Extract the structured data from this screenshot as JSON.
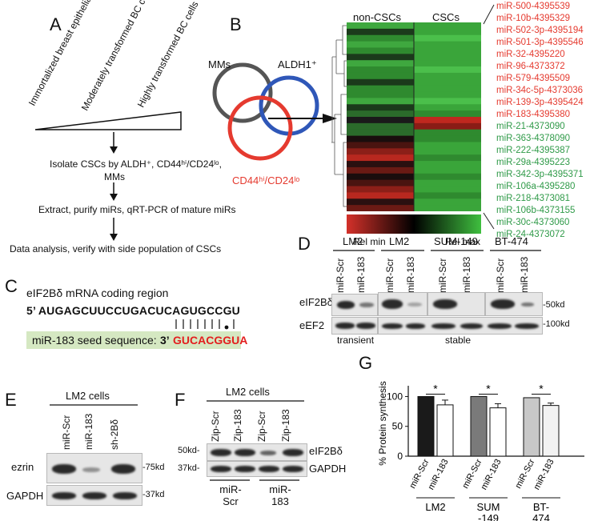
{
  "panelA": {
    "label": "A",
    "wedge_labels": [
      "Immortalized breast epithelial cells",
      "Moderately transformed BC cells",
      "Highly transformed BC cells"
    ],
    "step1": "Isolate CSCs by ALDH⁺, CD44ʰⁱ/CD24ˡᵒ,",
    "step1b": "MMs",
    "step2": "Extract, purify miRs, qRT-PCR of mature miRs",
    "step3": "Data analysis, verify with side population of CSCs"
  },
  "panelB": {
    "label": "B",
    "venn_mms": "MMs",
    "venn_aldh": "ALDH1⁺",
    "venn_cd44": "CD44ʰⁱ/CD24ˡᵒ",
    "col_non_cscs": "non-CSCs",
    "col_cscs": "CSCs",
    "scale_min": "Rel min",
    "scale_max": "Rel max",
    "colors": {
      "red": "#e53a2f",
      "blue": "#2f57b8",
      "green": "#2f9a48"
    },
    "mirs_red": [
      "miR-500-4395539",
      "miR-10b-4395329",
      "miR-502-3p-4395194",
      "miR-501-3p-4395546",
      "miR-32-4395220",
      "miR-96-4373372",
      "miR-579-4395509",
      "miR-34c-5p-4373036",
      "miR-139-3p-4395424",
      "miR-183-4395380"
    ],
    "mirs_green": [
      "miR-21-4373090",
      "miR-363-4378090",
      "miR-222-4395387",
      "miR-29a-4395223",
      "miR-342-3p-4395371",
      "miR-106a-4395280",
      "miR-218-4373081",
      "miR-106b-4373155",
      "miR-30c-4373060",
      "miR-24-4373072"
    ]
  },
  "panelC": {
    "label": "C",
    "title": "eIF2Bδ mRNA coding region",
    "seq5": "5’ AUGAGCUUCCUGACUCAGUGCCGU",
    "seed_label": "miR-183 seed sequence:",
    "seed3": "3’",
    "seed_seq": "GUCACGGUA"
  },
  "panelD": {
    "label": "D",
    "groups": [
      "LM2",
      "LM2",
      "SUM-149",
      "BT-474"
    ],
    "lanes": [
      "miR-Scr",
      "miR-183"
    ],
    "rows": [
      "eIF2Bδ",
      "eEF2"
    ],
    "mw": [
      "50kd",
      "100kd"
    ],
    "footer_transient": "transient",
    "footer_stable": "stable"
  },
  "panelE": {
    "label": "E",
    "title": "LM2 cells",
    "lanes": [
      "miR-Scr",
      "miR-183",
      "sh-2Bδ"
    ],
    "rows": [
      "ezrin",
      "GAPDH"
    ],
    "mw": [
      "75kd",
      "37kd"
    ]
  },
  "panelF": {
    "label": "F",
    "title": "LM2 cells",
    "lanes": [
      "Zip-Scr",
      "Zip-183",
      "Zip-Scr",
      "Zip-183"
    ],
    "rows": [
      "eIF2Bδ",
      "GAPDH"
    ],
    "mw": [
      "50kd-",
      "37kd-"
    ],
    "group1a": "miR-",
    "group1b": "Scr",
    "group2a": "miR-",
    "group2b": "183"
  },
  "panelG": {
    "label": "G",
    "ylabel": "% Protein synthesis",
    "yticks": [
      "0",
      "50",
      "100"
    ],
    "groups": [
      "LM2",
      "SUM\n-149",
      "BT-\n474"
    ],
    "star": "*"
  },
  "chart_data": {
    "type": "bar",
    "categories": [
      "miR-Scr",
      "miR-183",
      "miR-Scr",
      "miR-183",
      "miR-Scr",
      "miR-183"
    ],
    "groups": [
      "LM2",
      "SUM-149",
      "BT-474"
    ],
    "values": [
      100,
      86,
      100,
      81,
      98,
      85
    ],
    "errors": [
      0,
      8,
      0,
      7,
      0,
      4
    ],
    "colors": [
      "#1a1a1a",
      "#ffffff",
      "#7a7a7a",
      "#ffffff",
      "#c8c8c8",
      "#f2f2f2"
    ],
    "ylabel": "% Protein synthesis",
    "ylim": [
      0,
      110
    ],
    "yticks": [
      0,
      50,
      100
    ],
    "significance": [
      "*",
      "*",
      "*"
    ]
  }
}
